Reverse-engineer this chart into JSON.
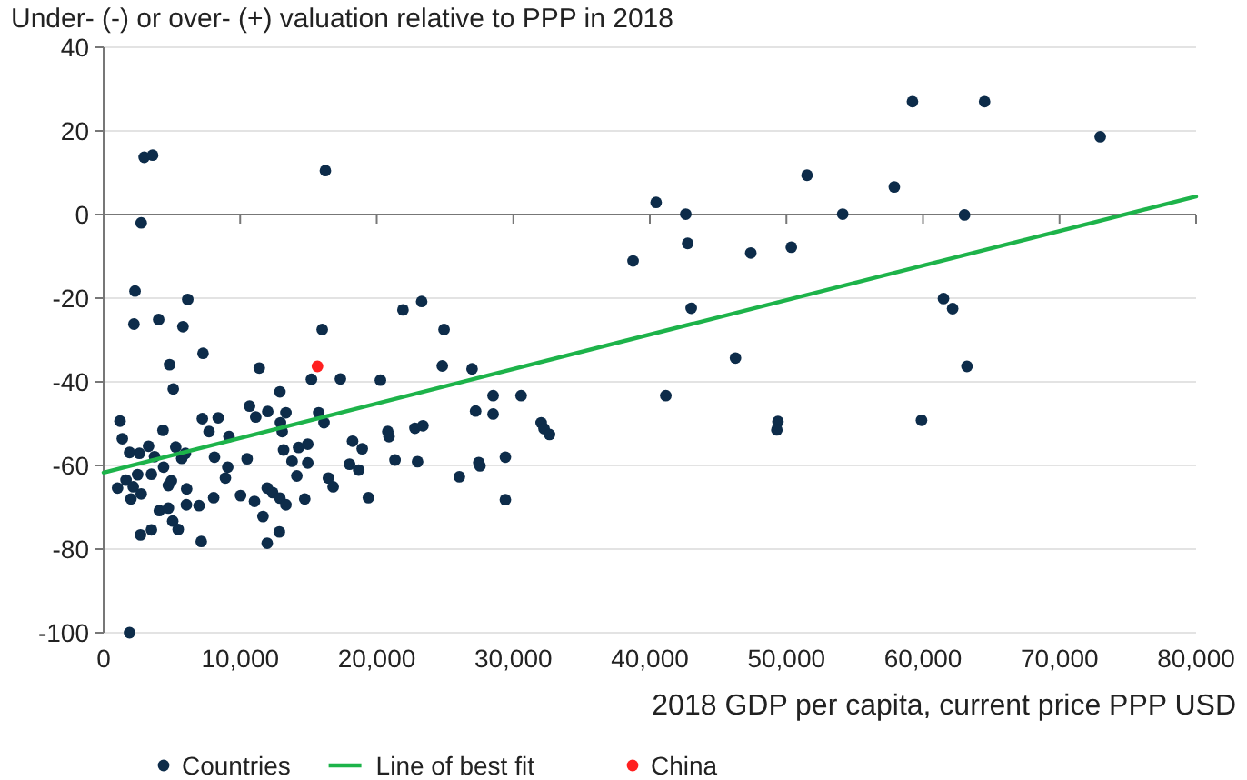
{
  "chart_data": {
    "type": "scatter",
    "ylabel": "Under- (-) or over- (+) valuation relative to PPP in 2018",
    "xlabel": "2018 GDP per capita, current price PPP USD",
    "xlim": [
      0,
      80000
    ],
    "xticks": [
      {
        "value": 0,
        "label": "0"
      },
      {
        "value": 10000,
        "label": "10,000"
      },
      {
        "value": 20000,
        "label": "20,000"
      },
      {
        "value": 30000,
        "label": "30,000"
      },
      {
        "value": 40000,
        "label": "40,000"
      },
      {
        "value": 50000,
        "label": "50,000"
      },
      {
        "value": 60000,
        "label": "60,000"
      },
      {
        "value": 70000,
        "label": "70,000"
      },
      {
        "value": 80000,
        "label": "80,000"
      }
    ],
    "ylim": [
      -100,
      40
    ],
    "yticks": [
      -100,
      -80,
      -60,
      -40,
      -20,
      0,
      20,
      40
    ],
    "grid": "y",
    "legend": "bottom",
    "marker": "circle",
    "series": [
      {
        "name": "Countries",
        "color": "#0d2c4a",
        "x": [
          2300,
          6160,
          2220,
          4030,
          5810,
          7280,
          4830,
          5100,
          11400,
          16010,
          15220,
          17340,
          20270,
          1200,
          1370,
          4350,
          7230,
          8390,
          7720,
          9180,
          10690,
          11140,
          12020,
          13350,
          12910,
          12950,
          13080,
          15750,
          16140,
          18230,
          18940,
          1900,
          2620,
          3290,
          3730,
          5280,
          5990,
          8120,
          10510,
          13180,
          14280,
          14950,
          13800,
          14950,
          14150,
          16460,
          16810,
          18010,
          18680,
          19390,
          1020,
          1640,
          2170,
          2490,
          2000,
          2750,
          3500,
          4390,
          5720,
          4740,
          4960,
          6080,
          4080,
          4740,
          5060,
          5460,
          6060,
          6990,
          8060,
          7150,
          2700,
          3500,
          9090,
          8920,
          10030,
          11050,
          11670,
          11980,
          12380,
          12910,
          13350,
          14730,
          12870,
          11980,
          1900,
          38770,
          21920,
          23290,
          24930,
          24800,
          26980,
          27240,
          28520,
          28520,
          30570,
          20810,
          20900,
          22800,
          23380,
          32040,
          32250,
          32650,
          21340,
          22990,
          26050,
          27470,
          27560,
          29420,
          29420,
          59230,
          64510,
          72980,
          51510,
          57900,
          40460,
          42630,
          54120,
          63040,
          42770,
          47390,
          50360,
          43030,
          61500,
          62170,
          46270,
          63220,
          41170,
          49380,
          59890,
          49300,
          2970,
          3590,
          16240,
          2750
        ],
        "values": [
          -18.3,
          -20.3,
          -26.2,
          -25.1,
          -26.8,
          -33.2,
          -35.9,
          -41.7,
          -36.7,
          -27.5,
          -39.4,
          -39.3,
          -39.6,
          -49.4,
          -53.6,
          -51.6,
          -48.8,
          -48.6,
          -51.9,
          -53.1,
          -45.8,
          -48.4,
          -47.1,
          -47.4,
          -42.4,
          -49.8,
          -51.9,
          -47.4,
          -49.8,
          -54.2,
          -56,
          -56.9,
          -57.1,
          -55.4,
          -57.9,
          -55.6,
          -57.1,
          -58,
          -58.4,
          -56.3,
          -55.7,
          -54.9,
          -59,
          -59.4,
          -62.5,
          -63,
          -65.1,
          -59.7,
          -61.1,
          -67.7,
          -65.4,
          -63.5,
          -65.1,
          -62.2,
          -68,
          -66.8,
          -62.1,
          -60.4,
          -58.3,
          -64.8,
          -63.7,
          -65.6,
          -70.8,
          -70.2,
          -73.3,
          -75.3,
          -69.4,
          -69.6,
          -67.7,
          -78.2,
          -76.6,
          -75.4,
          -60.4,
          -63,
          -67.2,
          -68.6,
          -72.2,
          -65.4,
          -66.5,
          -67.8,
          -69.4,
          -68,
          -75.9,
          -78.6,
          -100,
          -11.1,
          -22.8,
          -20.8,
          -27.5,
          -36.2,
          -36.9,
          -47,
          -43.3,
          -47.7,
          -43.3,
          -51.9,
          -53.1,
          -51.1,
          -50.5,
          -49.8,
          -51.2,
          -52.6,
          -58.7,
          -59.1,
          -62.7,
          -59.3,
          -60.1,
          -58,
          -68.2,
          27,
          27,
          18.6,
          9.4,
          6.6,
          2.9,
          0.1,
          0.1,
          -0.1,
          -6.9,
          -9.2,
          -7.8,
          -22.4,
          -20.1,
          -22.5,
          -34.3,
          -36.3,
          -43.3,
          -49.5,
          -49.2,
          -51.5,
          13.7,
          14.2,
          10.5,
          -2
        ]
      },
      {
        "name": "Line of best fit",
        "type": "line",
        "color": "#1db34a",
        "marker": "none",
        "x": [
          0,
          80000
        ],
        "values": [
          -61.7,
          4.3
        ]
      },
      {
        "name": "China",
        "color": "#ff2020",
        "x": [
          15660
        ],
        "values": [
          -36.3
        ]
      }
    ]
  }
}
